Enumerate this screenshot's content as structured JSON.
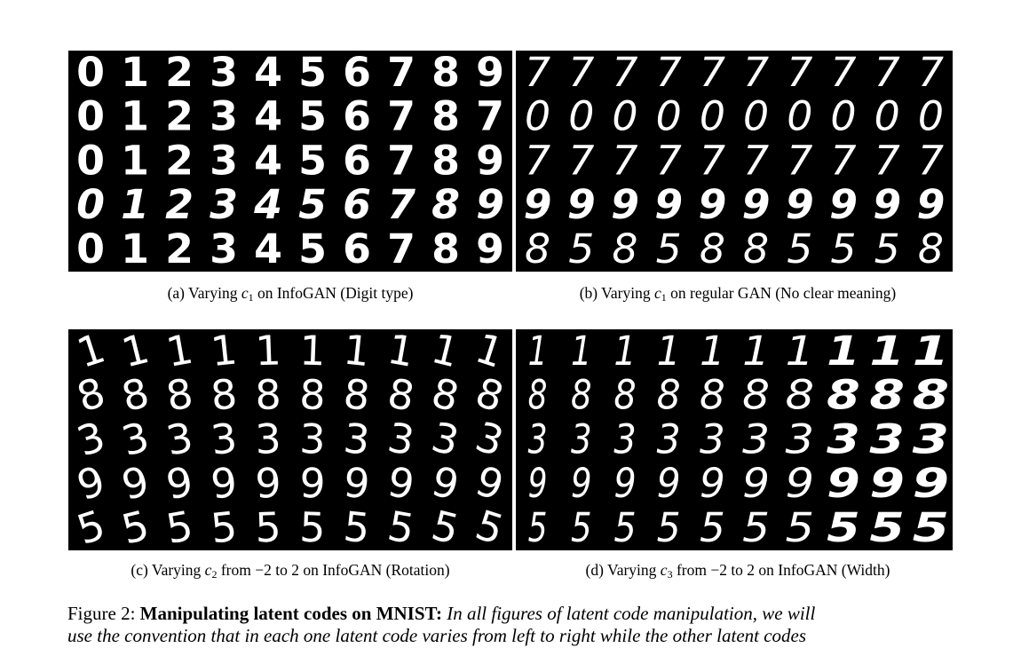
{
  "panels": [
    {
      "id": "a",
      "caption_prefix": "(a) Varying",
      "code_symbol": "c",
      "code_index": "1",
      "caption_suffix": "on InfoGAN (Digit type)",
      "rows": [
        [
          "0",
          "1",
          "2",
          "3",
          "4",
          "5",
          "6",
          "7",
          "8",
          "9"
        ],
        [
          "0",
          "1",
          "2",
          "3",
          "4",
          "5",
          "6",
          "7",
          "8",
          "7"
        ],
        [
          "0",
          "1",
          "2",
          "3",
          "4",
          "5",
          "6",
          "7",
          "8",
          "9"
        ],
        [
          "0",
          "1",
          "2",
          "3",
          "4",
          "5",
          "6",
          "7",
          "8",
          "9"
        ],
        [
          "0",
          "1",
          "2",
          "3",
          "4",
          "5",
          "6",
          "7",
          "8",
          "9"
        ]
      ]
    },
    {
      "id": "b",
      "caption_prefix": "(b) Varying",
      "code_symbol": "c",
      "code_index": "1",
      "caption_suffix": "on regular GAN (No clear meaning)",
      "rows": [
        [
          "7",
          "7",
          "7",
          "7",
          "7",
          "7",
          "7",
          "7",
          "7",
          "7"
        ],
        [
          "0",
          "0",
          "0",
          "0",
          "0",
          "0",
          "0",
          "0",
          "0",
          "0"
        ],
        [
          "7",
          "7",
          "7",
          "7",
          "7",
          "7",
          "7",
          "7",
          "7",
          "7"
        ],
        [
          "9",
          "9",
          "9",
          "9",
          "9",
          "9",
          "9",
          "9",
          "9",
          "9"
        ],
        [
          "8",
          "5",
          "8",
          "5",
          "8",
          "8",
          "5",
          "5",
          "5",
          "8"
        ]
      ]
    },
    {
      "id": "c",
      "caption_prefix": "(c) Varying",
      "code_symbol": "c",
      "code_index": "2",
      "caption_suffix": "from −2 to 2 on InfoGAN (Rotation)",
      "rows": [
        [
          "1",
          "1",
          "1",
          "1",
          "1",
          "1",
          "1",
          "1",
          "1",
          "1"
        ],
        [
          "8",
          "8",
          "8",
          "8",
          "8",
          "8",
          "8",
          "8",
          "8",
          "8"
        ],
        [
          "3",
          "3",
          "3",
          "3",
          "3",
          "3",
          "3",
          "3",
          "3",
          "3"
        ],
        [
          "9",
          "9",
          "9",
          "9",
          "9",
          "9",
          "9",
          "9",
          "9",
          "9"
        ],
        [
          "5",
          "5",
          "5",
          "5",
          "5",
          "5",
          "5",
          "5",
          "5",
          "5"
        ]
      ]
    },
    {
      "id": "d",
      "caption_prefix": "(d) Varying",
      "code_symbol": "c",
      "code_index": "3",
      "caption_suffix": "from −2 to 2 on InfoGAN (Width)",
      "rows": [
        [
          "1",
          "1",
          "1",
          "1",
          "1",
          "1",
          "1",
          "1",
          "1",
          "1"
        ],
        [
          "8",
          "8",
          "8",
          "8",
          "8",
          "8",
          "8",
          "8",
          "8",
          "8"
        ],
        [
          "3",
          "3",
          "3",
          "3",
          "3",
          "3",
          "3",
          "3",
          "3",
          "3"
        ],
        [
          "9",
          "9",
          "9",
          "9",
          "9",
          "9",
          "9",
          "9",
          "9",
          "9"
        ],
        [
          "5",
          "5",
          "5",
          "5",
          "5",
          "5",
          "5",
          "5",
          "5",
          "5"
        ]
      ]
    }
  ],
  "figure_caption": {
    "label": "Figure 2:",
    "bold": "Manipulating latent codes on MNIST:",
    "italic": "In all figures of latent code manipulation, we will",
    "line2": "use the convention that in each one latent code varies from left to right while the other latent codes"
  }
}
